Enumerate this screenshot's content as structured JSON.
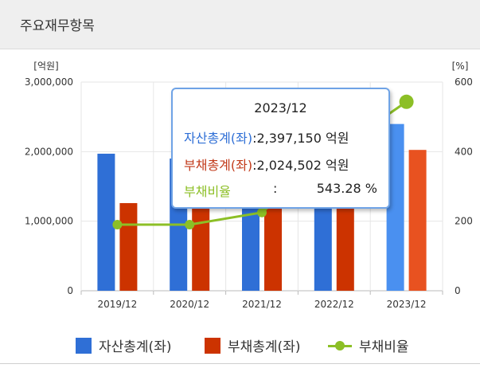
{
  "header": {
    "title": "주요재무항목"
  },
  "chart_data": {
    "type": "bar",
    "categories": [
      "2019/12",
      "2020/12",
      "2021/12",
      "2022/12",
      "2023/12"
    ],
    "series": [
      {
        "name": "자산총계(좌)",
        "type": "bar",
        "axis": "left",
        "color": "#2f6fd6",
        "values": [
          1970000,
          1900000,
          2100000,
          2250000,
          2397150
        ]
      },
      {
        "name": "부채총계(좌)",
        "type": "bar",
        "axis": "left",
        "color": "#cc3300",
        "values": [
          1260000,
          1300000,
          1550000,
          1700000,
          2024502
        ]
      },
      {
        "name": "부채비율",
        "type": "line",
        "axis": "right",
        "color": "#8cbf26",
        "values": [
          190,
          190,
          225,
          400,
          543.28
        ]
      }
    ],
    "highlight_colors": {
      "asset": "#4a90f0",
      "debt": "#e85220"
    },
    "y_left": {
      "label": "[억원]",
      "ylim": [
        0,
        3000000
      ],
      "ticks": [
        "0",
        "1,000,000",
        "2,000,000",
        "3,000,000"
      ],
      "tick_values": [
        0,
        1000000,
        2000000,
        3000000
      ]
    },
    "y_right": {
      "label": "[%]",
      "ylim": [
        0,
        600
      ],
      "ticks": [
        "0",
        "200",
        "400",
        "600"
      ],
      "tick_values": [
        0,
        200,
        400,
        600
      ]
    },
    "grid": true,
    "legend": "bottom",
    "highlighted_index": 4
  },
  "tooltip": {
    "title": "2023/12",
    "asset_label": "자산총계(좌)",
    "asset_value": ":2,397,150 억원",
    "debt_label": "부채총계(좌)",
    "debt_value": ":2,024,502 억원",
    "ratio_label": "부채비율",
    "ratio_sep": ":",
    "ratio_value": "543.28 %"
  },
  "legend": {
    "asset": "자산총계(좌)",
    "debt": "부채총계(좌)",
    "ratio": "부채비율"
  }
}
